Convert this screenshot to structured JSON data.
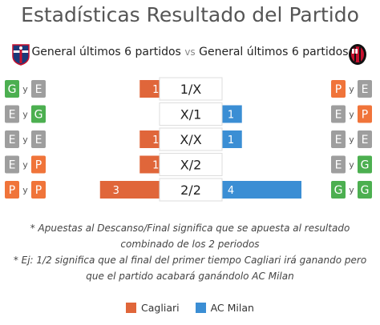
{
  "title": "Estadísticas Resultado del Partido",
  "subtitle": {
    "left": "General últimos 6 partidos",
    "vs": "vs",
    "right": "General últimos 6 partidos"
  },
  "logos": {
    "left": "cagliari-crest-icon",
    "right": "ac-milan-crest-icon"
  },
  "colors": {
    "cagliari": "#e0663a",
    "milan": "#3b8ed4",
    "badge_green": "#4caf50",
    "badge_orange": "#f0743a",
    "badge_gray": "#9e9e9e",
    "label_border": "#dddddd"
  },
  "chart_data": {
    "type": "bar",
    "categories": [
      "1/X",
      "X/1",
      "X/X",
      "X/2",
      "2/2"
    ],
    "series": [
      {
        "name": "Cagliari",
        "values": [
          1,
          0,
          1,
          1,
          3
        ]
      },
      {
        "name": "AC Milan",
        "values": [
          0,
          1,
          1,
          0,
          4
        ]
      }
    ],
    "xlim": [
      0,
      4
    ],
    "left_badges": [
      [
        "G",
        "y",
        "E"
      ],
      [
        "E",
        "y",
        "G"
      ],
      [
        "E",
        "y",
        "E"
      ],
      [
        "E",
        "y",
        "P"
      ],
      [
        "P",
        "y",
        "P"
      ]
    ],
    "right_badges": [
      [
        "P",
        "y",
        "E"
      ],
      [
        "E",
        "y",
        "P"
      ],
      [
        "E",
        "y",
        "E"
      ],
      [
        "E",
        "y",
        "G"
      ],
      [
        "G",
        "y",
        "G"
      ]
    ]
  },
  "notes": [
    "* Apuestas al Descanso/Final significa que se apuesta al resultado combinado de los 2 periodos",
    "* Ej: 1/2 significa que al final del primer tiempo Cagliari irá ganando pero que el partido acabará ganándolo AC Milan"
  ],
  "legend": [
    {
      "label": "Cagliari",
      "color": "#e0663a"
    },
    {
      "label": "AC Milan",
      "color": "#3b8ed4"
    }
  ]
}
